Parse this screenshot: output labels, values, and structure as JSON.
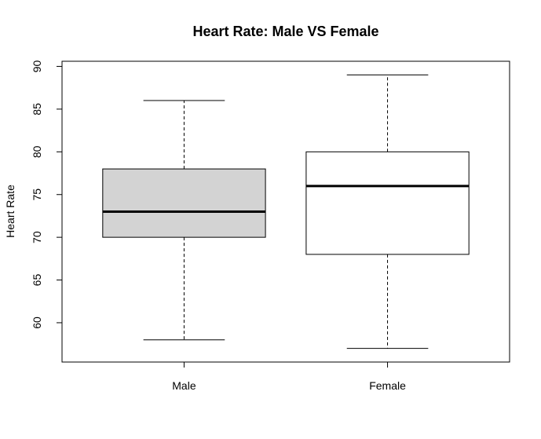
{
  "chart_data": {
    "type": "boxplot",
    "title": "Heart Rate: Male VS Female",
    "xlabel": "",
    "ylabel": "Heart Rate",
    "categories": [
      "Male",
      "Female"
    ],
    "boxes": [
      {
        "category": "Male",
        "min": 58,
        "q1": 70,
        "median": 73,
        "q3": 78,
        "max": 86,
        "fill": "#d3d3d3"
      },
      {
        "category": "Female",
        "min": 57,
        "q1": 68,
        "median": 76,
        "q3": 80,
        "max": 89,
        "fill": "#ffffff"
      }
    ],
    "yticks": [
      60,
      65,
      70,
      75,
      80,
      85,
      90
    ],
    "ylim": [
      55.4,
      90.6
    ],
    "grid": false,
    "colors": {
      "stroke": "#000000",
      "male_fill": "#d3d3d3",
      "female_fill": "#ffffff"
    }
  }
}
